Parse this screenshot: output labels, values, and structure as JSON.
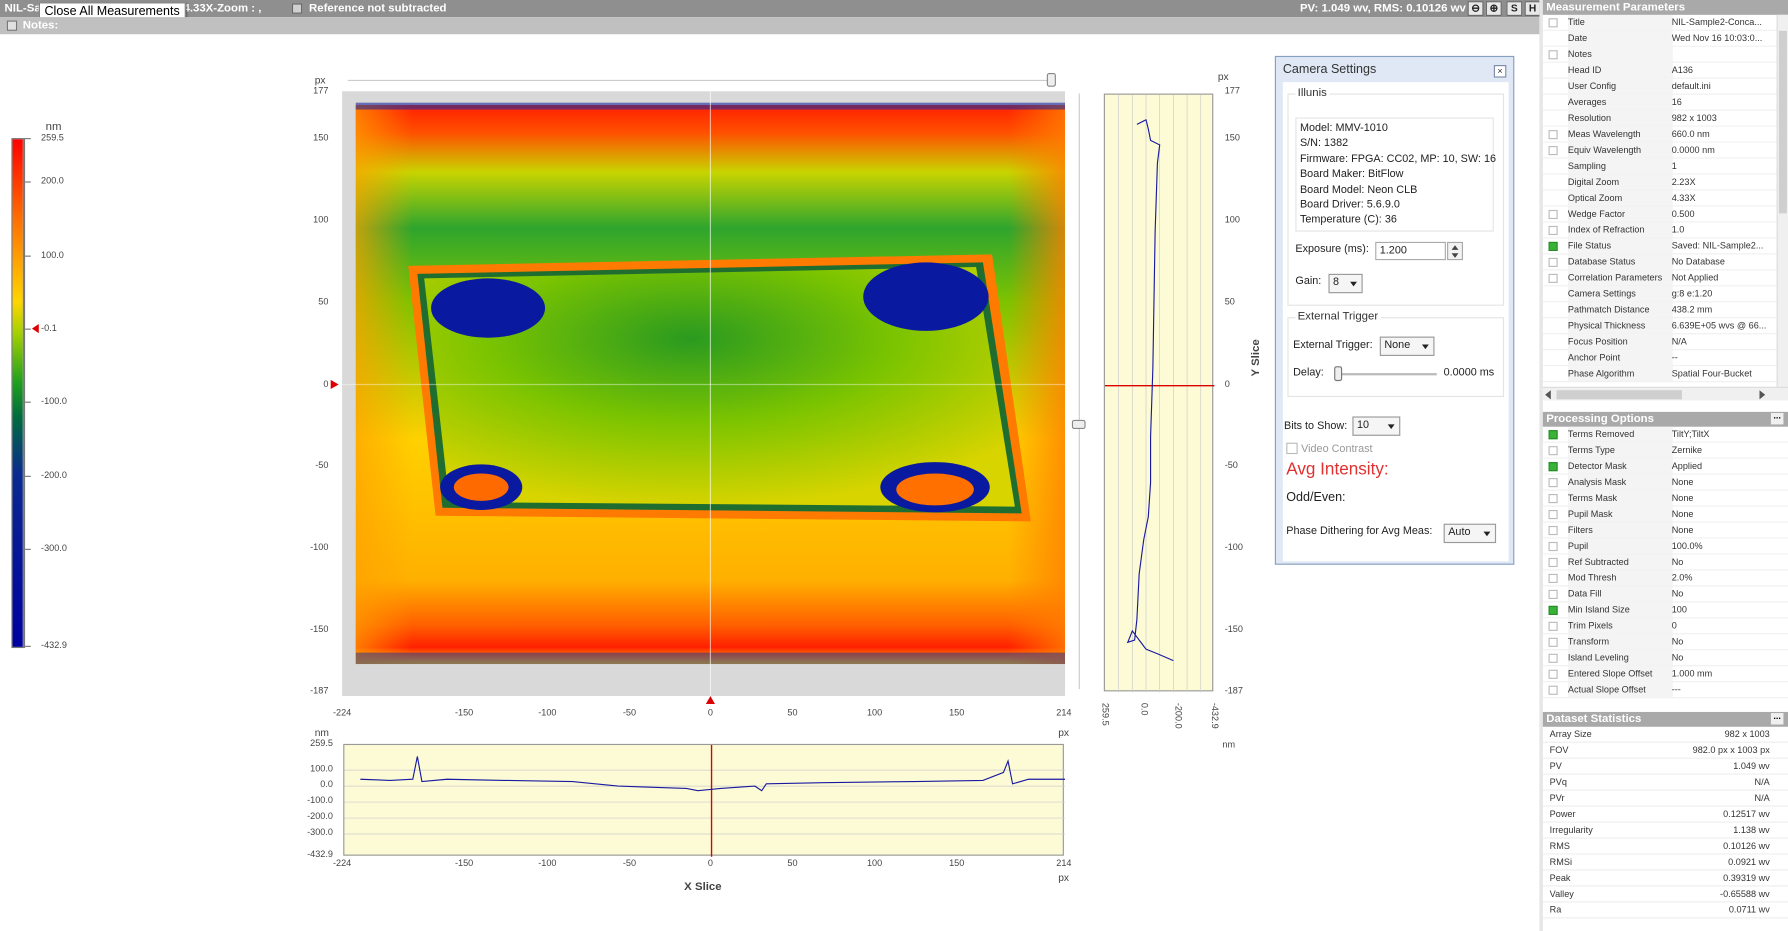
{
  "topbar": {
    "title": "NIL-Sa",
    "title2": "-1003-4.33X-Zoom : ,",
    "reference": "Reference not subtracted",
    "pv_rms": "PV: 1.049 wv, RMS: 0.10126 wv",
    "btn_s": "S",
    "btn_h": "H"
  },
  "tooltip": "Close All Measurements",
  "notes_label": "Notes:",
  "colorbar": {
    "unit": "nm",
    "ticks": [
      "259.5",
      "200.0",
      "100.0",
      "-0.1",
      "-100.0",
      "-200.0",
      "-300.0",
      "-432.9"
    ],
    "colors": [
      "#ff0000",
      "#ff8c00",
      "#ffff00",
      "#00aa00",
      "#0000a0",
      "#000080"
    ]
  },
  "main_plot": {
    "unit": "px",
    "yticks": [
      "177",
      "150",
      "100",
      "50",
      "0",
      "-50",
      "-100",
      "-150",
      "-187"
    ],
    "xticks": [
      "-224",
      "-150",
      "-100",
      "-50",
      "0",
      "50",
      "100",
      "150",
      "214"
    ]
  },
  "y_slice": {
    "unit": "px",
    "label": "Y Slice",
    "yticks": [
      "177",
      "150",
      "100",
      "50",
      "0",
      "-50",
      "-100",
      "-150",
      "-187"
    ],
    "xticks": [
      "259.5",
      "0.0",
      "-200.0",
      "-432.9"
    ],
    "xunit": "nm"
  },
  "x_slice": {
    "label": "X Slice",
    "yunit": "nm",
    "xunit": "px",
    "yticks": [
      "259.5",
      "100.0",
      "0.0",
      "-100.0",
      "-200.0",
      "-300.0",
      "-432.9"
    ],
    "xticks": [
      "-224",
      "-150",
      "-100",
      "-50",
      "0",
      "50",
      "100",
      "150",
      "214"
    ]
  },
  "camera": {
    "title": "Camera Settings",
    "group_illum": "Illunis",
    "info": [
      "Model: MMV-1010",
      "S/N: 1382",
      "Firmware: FPGA: CC02, MP: 10, SW: 16",
      "Board Maker: BitFlow",
      "Board Model: Neon CLB",
      "Board Driver: 5.6.9.0",
      "Temperature (C):  36"
    ],
    "exposure_label": "Exposure (ms):",
    "exposure_value": "1.200",
    "gain_label": "Gain:",
    "gain_value": "8",
    "ext_group": "External Trigger",
    "ext_label": "External Trigger:",
    "ext_value": "None",
    "delay_label": "Delay:",
    "delay_value": "0.0000 ms",
    "bits_label": "Bits to Show:",
    "bits_value": "10",
    "video_contrast": "Video Contrast",
    "avg_intensity": "Avg Intensity:",
    "odd_even": "Odd/Even:",
    "dither_label": "Phase Dithering for Avg Meas:",
    "dither_value": "Auto"
  },
  "measurement_parameters": {
    "title": "Measurement Parameters",
    "rows": [
      {
        "k": "Title",
        "v": "NIL-Sample2-Conca...",
        "c": 0
      },
      {
        "k": "Date",
        "v": "Wed Nov 16 10:03:0...",
        "c": -1
      },
      {
        "k": "Notes",
        "v": "",
        "c": 0
      },
      {
        "k": "Head ID",
        "v": "A136",
        "c": -1
      },
      {
        "k": "User Config",
        "v": "default.ini",
        "c": -1
      },
      {
        "k": "Averages",
        "v": "16",
        "c": -1
      },
      {
        "k": "Resolution",
        "v": "982 x 1003",
        "c": -1
      },
      {
        "k": "Meas Wavelength",
        "v": "660.0 nm",
        "c": 0
      },
      {
        "k": "Equiv Wavelength",
        "v": "0.0000 nm",
        "c": 0
      },
      {
        "k": "Sampling",
        "v": "1",
        "c": -1
      },
      {
        "k": "Digital Zoom",
        "v": "2.23X",
        "c": -1
      },
      {
        "k": "Optical Zoom",
        "v": "4.33X",
        "c": -1
      },
      {
        "k": "Wedge Factor",
        "v": "0.500",
        "c": 0
      },
      {
        "k": "Index of Refraction",
        "v": "1.0",
        "c": 0
      },
      {
        "k": "File Status",
        "v": "Saved: NIL-Sample2...",
        "c": 1
      },
      {
        "k": "Database Status",
        "v": "No Database",
        "c": 0
      },
      {
        "k": "Correlation Parameters",
        "v": "Not Applied",
        "c": 0
      },
      {
        "k": "Camera Settings",
        "v": "g:8 e:1.20",
        "c": -1
      },
      {
        "k": "Pathmatch Distance",
        "v": "438.2 mm",
        "c": -1
      },
      {
        "k": "Physical Thickness",
        "v": "6.639E+05 wvs @ 66...",
        "c": -1
      },
      {
        "k": "Focus Position",
        "v": "N/A",
        "c": -1
      },
      {
        "k": "Anchor Point",
        "v": "--",
        "c": -1
      },
      {
        "k": "Phase Algorithm",
        "v": "Spatial Four-Bucket",
        "c": -1
      }
    ]
  },
  "processing_options": {
    "title": "Processing Options",
    "rows": [
      {
        "k": "Terms Removed",
        "v": "TiltY;TiltX",
        "c": 1
      },
      {
        "k": "Terms Type",
        "v": "Zernike",
        "c": 0
      },
      {
        "k": "Detector Mask",
        "v": "Applied",
        "c": 1
      },
      {
        "k": "Analysis Mask",
        "v": "None",
        "c": 0
      },
      {
        "k": "Terms Mask",
        "v": "None",
        "c": 0
      },
      {
        "k": "Pupil Mask",
        "v": "None",
        "c": 0
      },
      {
        "k": "Filters",
        "v": "None",
        "c": 0
      },
      {
        "k": "Pupil",
        "v": "100.0%",
        "c": 0
      },
      {
        "k": "Ref Subtracted",
        "v": "No",
        "c": 0
      },
      {
        "k": "Mod Thresh",
        "v": "2.0%",
        "c": 0
      },
      {
        "k": "Data Fill",
        "v": "No",
        "c": 0
      },
      {
        "k": "Min Island Size",
        "v": "100",
        "c": 1
      },
      {
        "k": "Trim Pixels",
        "v": "0",
        "c": 0
      },
      {
        "k": "Transform",
        "v": "No",
        "c": 0
      },
      {
        "k": "Island Leveling",
        "v": "No",
        "c": 0
      },
      {
        "k": "Entered Slope Offset",
        "v": "1.000 mm",
        "c": 0
      },
      {
        "k": "Actual Slope Offset",
        "v": "---",
        "c": 0
      }
    ]
  },
  "dataset_statistics": {
    "title": "Dataset Statistics",
    "rows": [
      {
        "k": "Array Size",
        "v": "982 x 1003"
      },
      {
        "k": "FOV",
        "v": "982.0 px x 1003 px"
      },
      {
        "k": "PV",
        "v": "1.049 wv"
      },
      {
        "k": "PVq",
        "v": "N/A"
      },
      {
        "k": "PVr",
        "v": "N/A"
      },
      {
        "k": "Power",
        "v": "0.12517 wv"
      },
      {
        "k": "Irregularity",
        "v": "1.138 wv"
      },
      {
        "k": "RMS",
        "v": "0.10126 wv"
      },
      {
        "k": "RMSi",
        "v": "0.0921 wv"
      },
      {
        "k": "Peak",
        "v": "0.39319 wv"
      },
      {
        "k": "Valley",
        "v": "-0.65588 wv"
      },
      {
        "k": "Ra",
        "v": "0.0711 wv"
      }
    ]
  }
}
